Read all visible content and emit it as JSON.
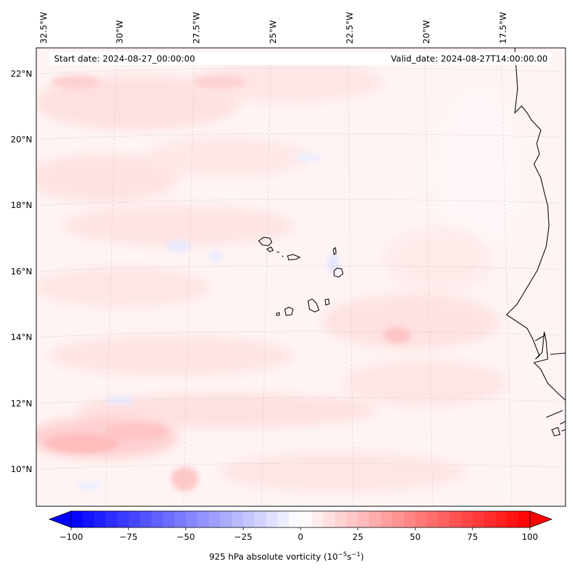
{
  "info": {
    "start_date": "Start date: 2024-08-27_00:00:00",
    "valid_date": "Valid_date: 2024-08-27T14:00:00.00"
  },
  "map": {
    "lon_labels": [
      "32.5°W",
      "30°W",
      "27.5°W",
      "25°W",
      "22.5°W",
      "20°W",
      "17.5°W"
    ],
    "lat_labels": [
      "22°N",
      "20°N",
      "18°N",
      "16°N",
      "14°N",
      "12°N",
      "10°N"
    ],
    "features": [
      "Cape Verde islands",
      "West African coastline"
    ],
    "colors": {
      "positive": "#ff0000",
      "negative": "#0000ff",
      "coast": "#000000"
    }
  },
  "colorbar": {
    "ticks": [
      "−100",
      "−75",
      "−50",
      "−25",
      "0",
      "25",
      "50",
      "75",
      "100"
    ],
    "min": -100,
    "max": 100,
    "title_prefix": "925 hPa absolute vorticity (10",
    "title_exp1": "−5",
    "title_mid": "s",
    "title_exp2": "−1",
    "title_suffix": ")"
  }
}
